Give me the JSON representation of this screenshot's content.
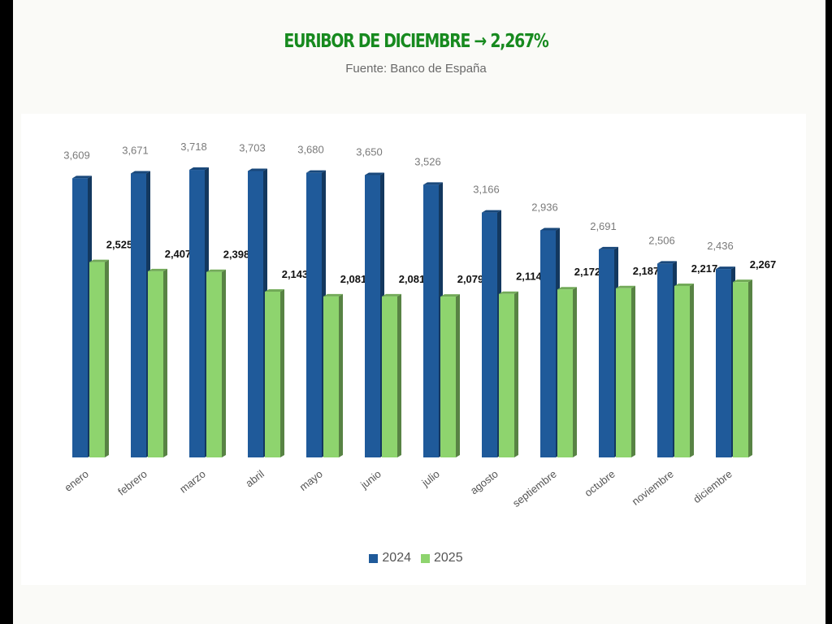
{
  "title": "EURIBOR DE DICIEMBRE → 2,267%",
  "subtitle": "Fuente: Banco de España",
  "colors": {
    "series_2024": "#1f5a9a",
    "series_2025": "#8ed46e",
    "title": "#178a1f"
  },
  "chart_data": {
    "type": "bar",
    "title": "EURIBOR DE DICIEMBRE → 2,267%",
    "subtitle": "Fuente: Banco de España",
    "categories": [
      "enero",
      "febrero",
      "marzo",
      "abril",
      "mayo",
      "junio",
      "julio",
      "agosto",
      "septiembre",
      "octubre",
      "noviembre",
      "diciembre"
    ],
    "series": [
      {
        "name": "2024",
        "values": [
          3.609,
          3.671,
          3.718,
          3.703,
          3.68,
          3.65,
          3.526,
          3.166,
          2.936,
          2.691,
          2.506,
          2.436
        ],
        "labels": [
          "3,609",
          "3,671",
          "3,718",
          "3,703",
          "3,680",
          "3,650",
          "3,526",
          "3,166",
          "2,936",
          "2,691",
          "2,506",
          "2,436"
        ]
      },
      {
        "name": "2025",
        "values": [
          2.525,
          2.407,
          2.398,
          2.143,
          2.081,
          2.081,
          2.079,
          2.114,
          2.172,
          2.187,
          2.217,
          2.267
        ],
        "labels": [
          "2,525",
          "2,407",
          "2,398",
          "2,143",
          "2,081",
          "2,081",
          "2,079",
          "2,114",
          "2,172",
          "2,187",
          "2,217",
          "2,267"
        ]
      }
    ],
    "ylim": [
      0,
      4.2
    ],
    "grid": false,
    "legend_position": "bottom",
    "xlabel": "",
    "ylabel": ""
  }
}
